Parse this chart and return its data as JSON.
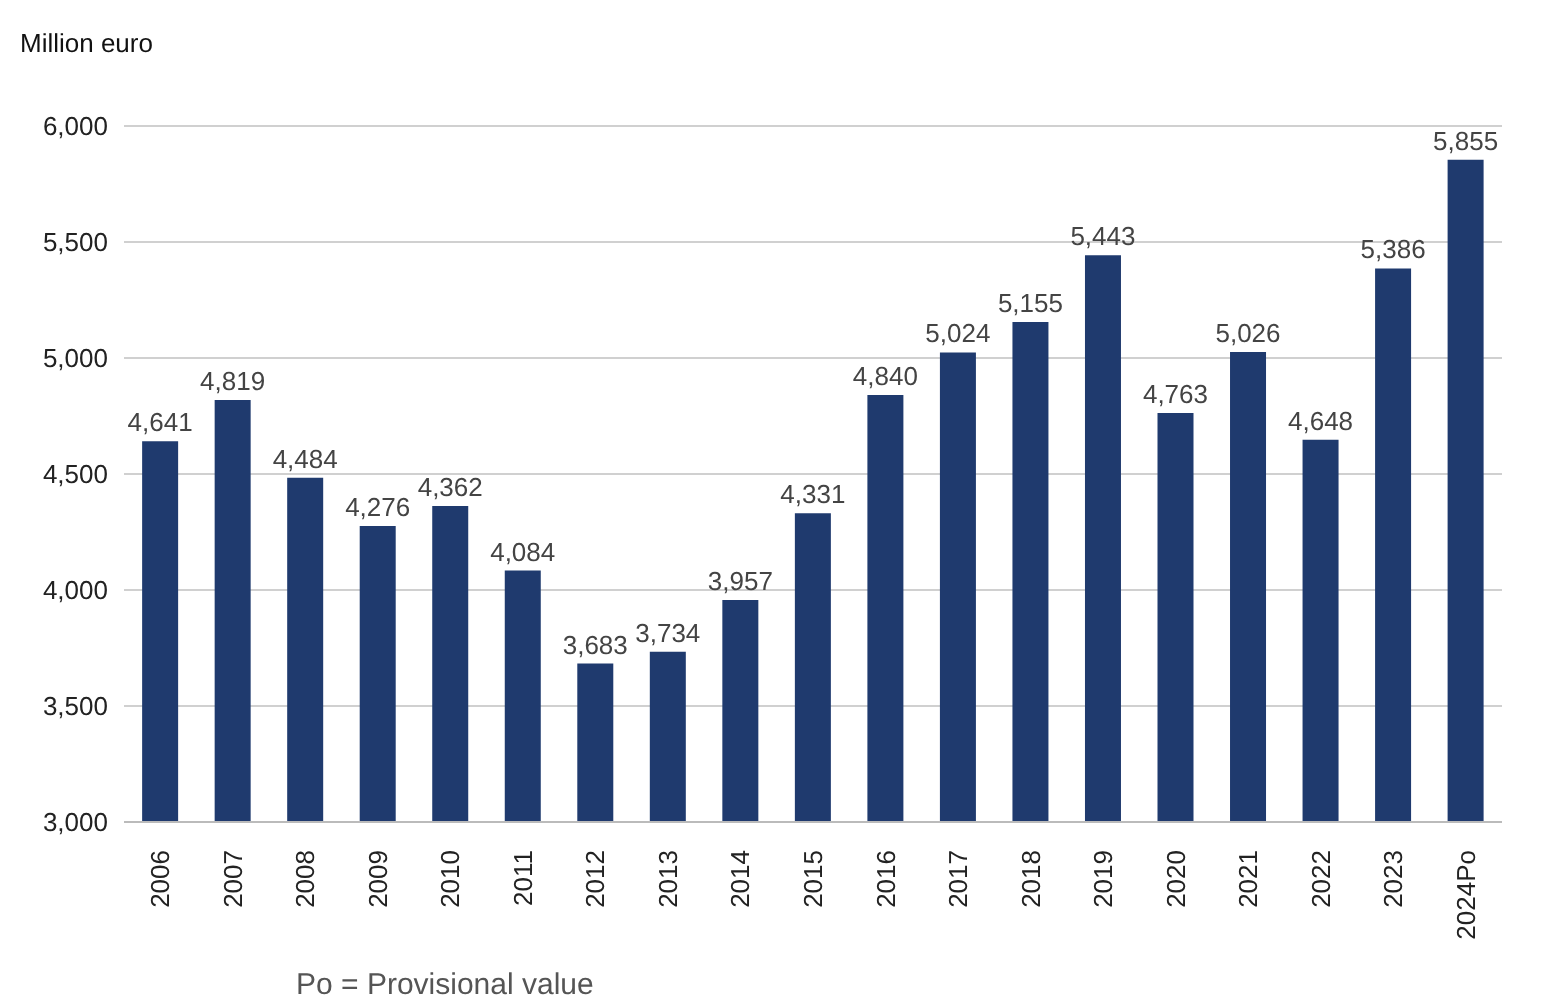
{
  "chart_data": {
    "type": "bar",
    "ylabel": "Million euro",
    "categories": [
      "2006",
      "2007",
      "2008",
      "2009",
      "2010",
      "2011",
      "2012",
      "2013",
      "2014",
      "2015",
      "2016",
      "2017",
      "2018",
      "2019",
      "2020",
      "2021",
      "2022",
      "2023",
      "2024Po"
    ],
    "values": [
      4641,
      4819,
      4484,
      4276,
      4362,
      4084,
      3683,
      3734,
      3957,
      4331,
      4840,
      5024,
      5155,
      5443,
      4763,
      5026,
      4648,
      5386,
      5855
    ],
    "value_labels": [
      "4,641",
      "4,819",
      "4,484",
      "4,276",
      "4,362",
      "4,084",
      "3,683",
      "3,734",
      "3,957",
      "4,331",
      "4,840",
      "5,024",
      "5,155",
      "5,443",
      "4,763",
      "5,026",
      "4,648",
      "5,386",
      "5,855"
    ],
    "color": "#1f3a6e",
    "ylim": [
      3000,
      6000
    ],
    "yticks": [
      {
        "value": 3000,
        "label": "3,000"
      },
      {
        "value": 3500,
        "label": "3,500"
      },
      {
        "value": 4000,
        "label": "4,000"
      },
      {
        "value": 4500,
        "label": "4,500"
      },
      {
        "value": 5000,
        "label": "5,000"
      },
      {
        "value": 5500,
        "label": "5,500"
      },
      {
        "value": 6000,
        "label": "6,000"
      }
    ],
    "grid": "y",
    "annotations": [
      "Po = Provisional value"
    ]
  }
}
